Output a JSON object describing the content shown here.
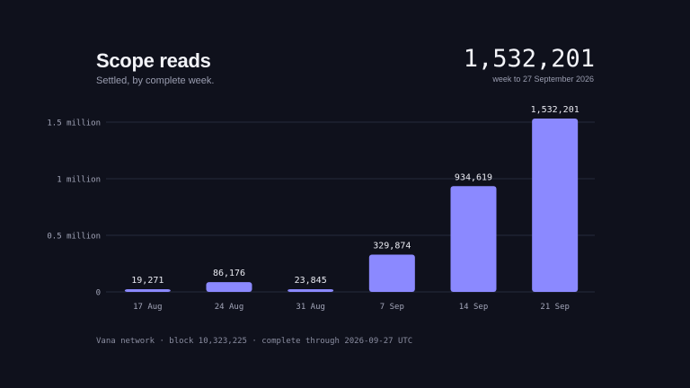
{
  "header": {
    "title": "Scope reads",
    "subtitle": "Settled, by complete week.",
    "headline_value": "1,532,201",
    "headline_caption": "week to 27 September 2026"
  },
  "footer": {
    "text": "Vana network · block 10,323,225 · complete through 2026-09-27 UTC"
  },
  "colors": {
    "bar": "#8b89ff",
    "grid": "#262a3d",
    "axis_text": "#a2a5b8",
    "label_text": "#e9eaf1"
  },
  "chart_data": {
    "type": "bar",
    "categories": [
      "17 Aug",
      "24 Aug",
      "31 Aug",
      "7 Sep",
      "14 Sep",
      "21 Sep"
    ],
    "values": [
      19271,
      86176,
      23845,
      329874,
      934619,
      1532201
    ],
    "data_labels": [
      "19,271",
      "86,176",
      "23,845",
      "329,874",
      "934,619",
      "1,532,201"
    ],
    "yticks": [
      0,
      500000,
      1000000,
      1500000
    ],
    "ytick_labels": [
      "0",
      "0.5 million",
      "1 million",
      "1.5 million"
    ],
    "ylim": [
      0,
      1532201
    ],
    "grid": true
  }
}
